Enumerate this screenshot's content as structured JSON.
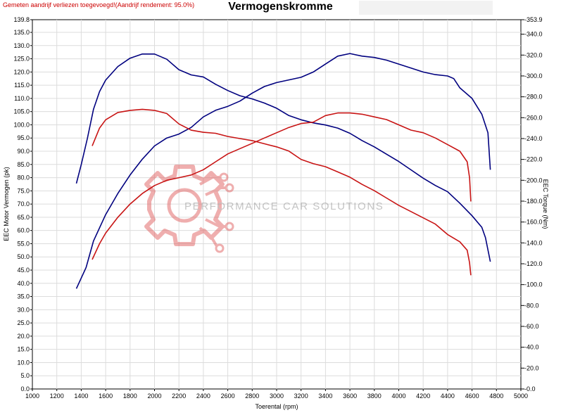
{
  "header": {
    "note": "Gemeten aandrijf verliezen toegevoegd!(Aandrijf rendement: 95.0%)",
    "title": "Vermogenskromme"
  },
  "watermark": {
    "text": "PERFORMANCE CAR SOLUTIONS",
    "gear_icon": "gear-logo-icon"
  },
  "colors": {
    "blue": "#00007f",
    "red": "#c81414",
    "grid": "#dcdcdc"
  },
  "chart_data": {
    "type": "line",
    "xlabel": "Toerental (rpm)",
    "ylabel_left": "EEC Motor Vermogen (pk)",
    "ylabel_right": "EEC Torque (Nm)",
    "xlim": [
      1000,
      5000
    ],
    "ylim_left": [
      0.0,
      139.8
    ],
    "ylim_right": [
      0.0,
      353.9
    ],
    "grid": true,
    "x_ticks": [
      "1000",
      "1200",
      "1400",
      "1600",
      "1800",
      "2000",
      "2200",
      "2400",
      "2600",
      "2800",
      "3000",
      "3200",
      "3400",
      "3600",
      "3800",
      "4000",
      "4200",
      "4400",
      "4600",
      "4800",
      "5000"
    ],
    "y_left_ticks": [
      "0.0",
      "5.0",
      "10.0",
      "15.0",
      "20.0",
      "25.0",
      "30.0",
      "35.0",
      "40.0",
      "45.0",
      "50.0",
      "55.0",
      "60.0",
      "65.0",
      "70.0",
      "75.0",
      "80.0",
      "85.0",
      "90.0",
      "95.0",
      "100.0",
      "105.0",
      "110.0",
      "115.0",
      "120.0",
      "125.0",
      "130.0",
      "135.0",
      "139.8"
    ],
    "y_right_ticks": [
      "0.0",
      "20.0",
      "40.0",
      "60.0",
      "80.0",
      "100.0",
      "120.0",
      "140.0",
      "160.0",
      "180.0",
      "200.0",
      "220.0",
      "240.0",
      "260.0",
      "280.0",
      "300.0",
      "320.0",
      "340.0",
      "353.9"
    ],
    "series": [
      {
        "axis": "left",
        "color": "#00007f",
        "points": [
          [
            1360,
            38
          ],
          [
            1440,
            46
          ],
          [
            1500,
            56
          ],
          [
            1600,
            66
          ],
          [
            1700,
            74
          ],
          [
            1800,
            81
          ],
          [
            1900,
            87
          ],
          [
            2000,
            92
          ],
          [
            2100,
            95
          ],
          [
            2200,
            96.5
          ],
          [
            2300,
            99
          ],
          [
            2400,
            103
          ],
          [
            2500,
            105.5
          ],
          [
            2600,
            107
          ],
          [
            2700,
            109
          ],
          [
            2800,
            112
          ],
          [
            2900,
            114.5
          ],
          [
            3000,
            116
          ],
          [
            3100,
            117
          ],
          [
            3200,
            118
          ],
          [
            3300,
            120
          ],
          [
            3400,
            123
          ],
          [
            3500,
            126
          ],
          [
            3600,
            127
          ],
          [
            3700,
            126
          ],
          [
            3800,
            125.5
          ],
          [
            3900,
            124.5
          ],
          [
            4000,
            123
          ],
          [
            4100,
            121.5
          ],
          [
            4200,
            120
          ],
          [
            4300,
            119
          ],
          [
            4400,
            118.5
          ],
          [
            4450,
            117.5
          ],
          [
            4500,
            114
          ],
          [
            4600,
            110
          ],
          [
            4680,
            104
          ],
          [
            4730,
            97
          ],
          [
            4750,
            83
          ]
        ]
      },
      {
        "axis": "right",
        "color": "#00007f",
        "points": [
          [
            1360,
            197
          ],
          [
            1400,
            215
          ],
          [
            1450,
            240
          ],
          [
            1500,
            268
          ],
          [
            1550,
            285
          ],
          [
            1600,
            296
          ],
          [
            1700,
            309
          ],
          [
            1800,
            317
          ],
          [
            1900,
            321
          ],
          [
            2000,
            321
          ],
          [
            2100,
            316
          ],
          [
            2200,
            306
          ],
          [
            2300,
            301
          ],
          [
            2400,
            299
          ],
          [
            2500,
            292
          ],
          [
            2600,
            286
          ],
          [
            2700,
            281
          ],
          [
            2800,
            278
          ],
          [
            2900,
            274
          ],
          [
            3000,
            269
          ],
          [
            3100,
            262
          ],
          [
            3200,
            258
          ],
          [
            3300,
            255
          ],
          [
            3400,
            253
          ],
          [
            3500,
            250
          ],
          [
            3600,
            245
          ],
          [
            3700,
            238
          ],
          [
            3800,
            232
          ],
          [
            3900,
            225
          ],
          [
            4000,
            218
          ],
          [
            4100,
            210
          ],
          [
            4200,
            202
          ],
          [
            4300,
            195
          ],
          [
            4400,
            189
          ],
          [
            4500,
            178
          ],
          [
            4600,
            166
          ],
          [
            4680,
            155
          ],
          [
            4710,
            145
          ],
          [
            4750,
            122
          ]
        ]
      },
      {
        "axis": "left",
        "color": "#c81414",
        "points": [
          [
            1490,
            49
          ],
          [
            1550,
            55
          ],
          [
            1600,
            59
          ],
          [
            1700,
            65
          ],
          [
            1800,
            70
          ],
          [
            1900,
            74
          ],
          [
            2000,
            77
          ],
          [
            2100,
            79
          ],
          [
            2200,
            80
          ],
          [
            2300,
            81
          ],
          [
            2400,
            83
          ],
          [
            2500,
            86
          ],
          [
            2600,
            89
          ],
          [
            2700,
            91
          ],
          [
            2800,
            93
          ],
          [
            2900,
            95
          ],
          [
            3000,
            97
          ],
          [
            3100,
            99
          ],
          [
            3200,
            100.5
          ],
          [
            3300,
            101
          ],
          [
            3400,
            103.5
          ],
          [
            3500,
            104.5
          ],
          [
            3600,
            104.5
          ],
          [
            3700,
            104
          ],
          [
            3800,
            103
          ],
          [
            3900,
            102
          ],
          [
            4000,
            100
          ],
          [
            4100,
            98
          ],
          [
            4200,
            97
          ],
          [
            4300,
            95
          ],
          [
            4400,
            92.5
          ],
          [
            4500,
            90
          ],
          [
            4560,
            86
          ],
          [
            4580,
            80
          ],
          [
            4590,
            71
          ]
        ]
      },
      {
        "axis": "right",
        "color": "#c81414",
        "points": [
          [
            1490,
            233
          ],
          [
            1550,
            250
          ],
          [
            1600,
            258
          ],
          [
            1700,
            265
          ],
          [
            1800,
            267
          ],
          [
            1900,
            268
          ],
          [
            2000,
            267
          ],
          [
            2100,
            264
          ],
          [
            2200,
            254
          ],
          [
            2300,
            248
          ],
          [
            2400,
            246
          ],
          [
            2500,
            245
          ],
          [
            2600,
            242
          ],
          [
            2700,
            240
          ],
          [
            2800,
            238
          ],
          [
            2900,
            235
          ],
          [
            3000,
            232
          ],
          [
            3100,
            228
          ],
          [
            3200,
            220
          ],
          [
            3300,
            216
          ],
          [
            3400,
            213
          ],
          [
            3500,
            208
          ],
          [
            3600,
            203
          ],
          [
            3700,
            196
          ],
          [
            3800,
            190
          ],
          [
            3900,
            183
          ],
          [
            4000,
            176
          ],
          [
            4100,
            170
          ],
          [
            4200,
            164
          ],
          [
            4300,
            158
          ],
          [
            4400,
            148
          ],
          [
            4500,
            141
          ],
          [
            4560,
            133
          ],
          [
            4580,
            121
          ],
          [
            4590,
            109
          ]
        ]
      }
    ]
  }
}
